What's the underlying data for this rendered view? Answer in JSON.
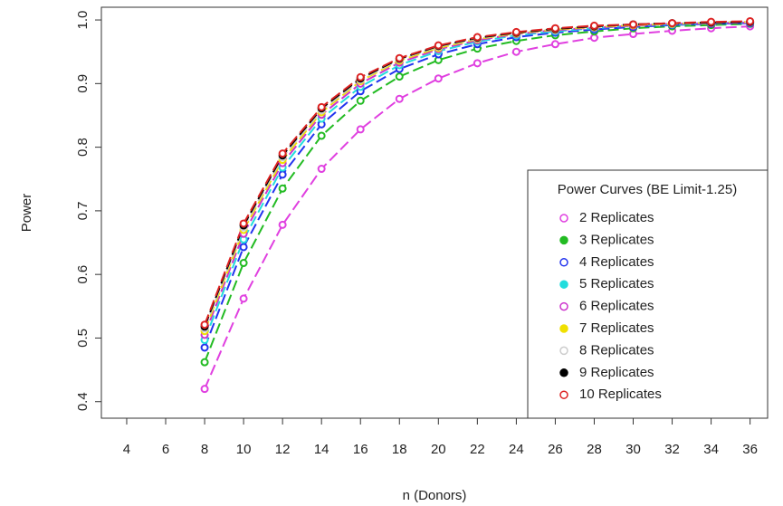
{
  "chart_data": {
    "type": "line",
    "x_label": "n (Donors)",
    "y_label": "Power",
    "xlim": [
      2.7,
      36.9
    ],
    "ylim": [
      0.374,
      1.02
    ],
    "xticks": [
      4,
      6,
      8,
      10,
      12,
      14,
      16,
      18,
      20,
      22,
      24,
      26,
      28,
      30,
      32,
      34,
      36
    ],
    "yticks": [
      0.4,
      0.5,
      0.6,
      0.7,
      0.8,
      0.9,
      {
        "value": 1.0,
        "label": "1.0"
      }
    ],
    "legend_title": "Power Curves (BE Limit-1.25)",
    "legend_position": "lower-right",
    "x": [
      8,
      10,
      12,
      14,
      16,
      18,
      20,
      22,
      24,
      26,
      28,
      30,
      32,
      34,
      36
    ],
    "series": [
      {
        "name": "2 Replicates",
        "color": "#e040e0",
        "filled": false,
        "values": [
          0.42,
          0.562,
          0.678,
          0.766,
          0.828,
          0.876,
          0.908,
          0.932,
          0.95,
          0.962,
          0.972,
          0.978,
          0.983,
          0.987,
          0.99
        ]
      },
      {
        "name": "3 Replicates",
        "color": "#22bb22",
        "filled": true,
        "values": [
          0.462,
          0.618,
          0.735,
          0.818,
          0.873,
          0.911,
          0.937,
          0.955,
          0.967,
          0.976,
          0.982,
          0.987,
          0.99,
          0.992,
          0.994
        ]
      },
      {
        "name": "4 Replicates",
        "color": "#2233ee",
        "filled": false,
        "values": [
          0.485,
          0.643,
          0.757,
          0.836,
          0.888,
          0.923,
          0.946,
          0.962,
          0.973,
          0.98,
          0.985,
          0.989,
          0.992,
          0.994,
          0.995
        ]
      },
      {
        "name": "5 Replicates",
        "color": "#22dddd",
        "filled": true,
        "values": [
          0.497,
          0.655,
          0.768,
          0.845,
          0.895,
          0.929,
          0.951,
          0.966,
          0.976,
          0.982,
          0.987,
          0.991,
          0.993,
          0.995,
          0.996
        ]
      },
      {
        "name": "6 Replicates",
        "color": "#cc33cc",
        "filled": false,
        "values": [
          0.505,
          0.664,
          0.775,
          0.851,
          0.9,
          0.933,
          0.954,
          0.968,
          0.978,
          0.984,
          0.988,
          0.991,
          0.994,
          0.995,
          0.996
        ]
      },
      {
        "name": "7 Replicates",
        "color": "#f0e000",
        "filled": true,
        "values": [
          0.511,
          0.67,
          0.78,
          0.855,
          0.904,
          0.936,
          0.956,
          0.97,
          0.979,
          0.985,
          0.989,
          0.992,
          0.994,
          0.996,
          0.997
        ]
      },
      {
        "name": "8 Replicates",
        "color": "#cccccc",
        "filled": false,
        "values": [
          0.515,
          0.674,
          0.784,
          0.858,
          0.906,
          0.938,
          0.958,
          0.971,
          0.98,
          0.986,
          0.99,
          0.993,
          0.995,
          0.996,
          0.997
        ]
      },
      {
        "name": "9 Replicates",
        "color": "#000000",
        "filled": true,
        "values": [
          0.518,
          0.677,
          0.787,
          0.861,
          0.908,
          0.939,
          0.959,
          0.972,
          0.98,
          0.986,
          0.99,
          0.993,
          0.995,
          0.996,
          0.997
        ]
      },
      {
        "name": "10 Replicates",
        "color": "#dd2222",
        "filled": false,
        "values": [
          0.521,
          0.68,
          0.79,
          0.863,
          0.91,
          0.94,
          0.96,
          0.973,
          0.981,
          0.987,
          0.991,
          0.993,
          0.995,
          0.997,
          0.998
        ]
      }
    ]
  }
}
